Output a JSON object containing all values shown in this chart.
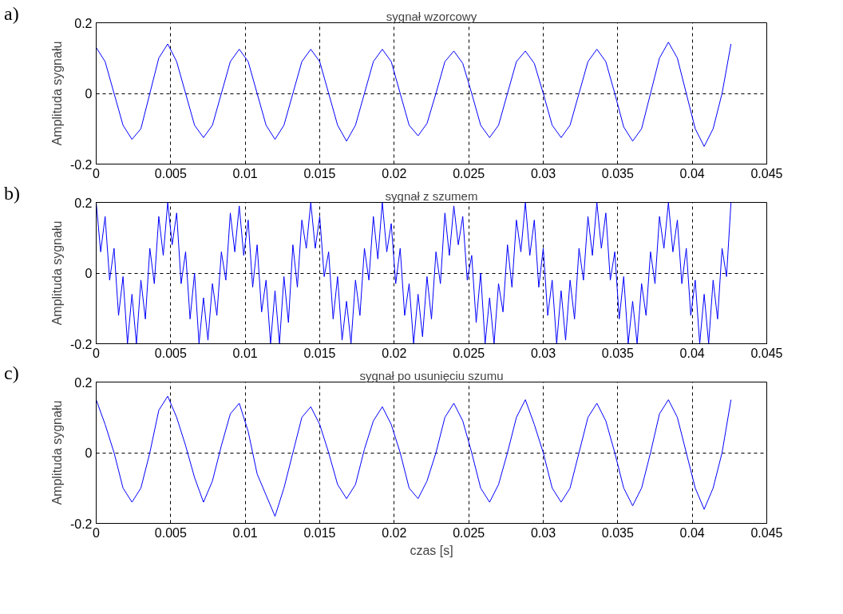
{
  "chart_data": [
    {
      "type": "line",
      "title": "sygnał wzorcowy",
      "ylabel": "Amplituda sygnału",
      "annotations": [
        "a)"
      ],
      "color": "#0000ff",
      "grid": true,
      "xlim": [
        0,
        0.045
      ],
      "ylim": [
        -0.2,
        0.2
      ],
      "xticks": [
        0,
        0.005,
        0.01,
        0.015,
        0.02,
        0.025,
        0.03,
        0.035,
        0.04,
        0.045
      ],
      "yticks": [
        -0.2,
        0,
        0.2
      ],
      "x": [
        0,
        0.0006,
        0.0012,
        0.0018,
        0.0024,
        0.003,
        0.0036,
        0.0042,
        0.0048,
        0.0054,
        0.006,
        0.0066,
        0.0072,
        0.0078,
        0.0084,
        0.009,
        0.0096,
        0.0102,
        0.0108,
        0.0114,
        0.012,
        0.0126,
        0.0132,
        0.0138,
        0.0144,
        0.015,
        0.0156,
        0.0162,
        0.0168,
        0.0174,
        0.018,
        0.0186,
        0.0192,
        0.0198,
        0.0204,
        0.021,
        0.0216,
        0.0222,
        0.0228,
        0.0234,
        0.024,
        0.0246,
        0.0252,
        0.0258,
        0.0264,
        0.027,
        0.0276,
        0.0282,
        0.0288,
        0.0294,
        0.03,
        0.0306,
        0.0312,
        0.0318,
        0.0324,
        0.033,
        0.0336,
        0.0342,
        0.0348,
        0.0354,
        0.036,
        0.0366,
        0.0372,
        0.0378,
        0.0384,
        0.039,
        0.0396,
        0.0402,
        0.0408,
        0.0414,
        0.042,
        0.0426
      ],
      "values": [
        0.13,
        0.09,
        0.0,
        -0.09,
        -0.13,
        -0.1,
        0.0,
        0.1,
        0.14,
        0.09,
        0.0,
        -0.09,
        -0.125,
        -0.09,
        0.0,
        0.09,
        0.125,
        0.09,
        0.0,
        -0.09,
        -0.13,
        -0.09,
        0.0,
        0.09,
        0.125,
        0.09,
        0.0,
        -0.09,
        -0.135,
        -0.09,
        0.0,
        0.09,
        0.125,
        0.09,
        0.0,
        -0.09,
        -0.12,
        -0.085,
        0.0,
        0.09,
        0.12,
        0.085,
        0.0,
        -0.09,
        -0.125,
        -0.09,
        0.0,
        0.09,
        0.12,
        0.085,
        0.0,
        -0.09,
        -0.125,
        -0.09,
        0.0,
        0.09,
        0.125,
        0.09,
        0.0,
        -0.095,
        -0.135,
        -0.1,
        0.0,
        0.1,
        0.145,
        0.1,
        0.0,
        -0.1,
        -0.15,
        -0.1,
        0.0,
        0.14
      ]
    },
    {
      "type": "line",
      "title": "sygnał z szumem",
      "ylabel": "Amplituda sygnału",
      "annotations": [
        "b)"
      ],
      "color": "#0000ff",
      "grid": true,
      "xlim": [
        0,
        0.045
      ],
      "ylim": [
        -0.2,
        0.2
      ],
      "xticks": [
        0,
        0.005,
        0.01,
        0.015,
        0.02,
        0.025,
        0.03,
        0.035,
        0.04,
        0.045
      ],
      "yticks": [
        -0.2,
        0,
        0.2
      ],
      "x": [
        0,
        0.0003,
        0.0006,
        0.0009,
        0.0012,
        0.0015,
        0.0018,
        0.0021,
        0.0024,
        0.0027,
        0.003,
        0.0033,
        0.0036,
        0.0039,
        0.0042,
        0.0045,
        0.0048,
        0.0051,
        0.0054,
        0.0057,
        0.006,
        0.0063,
        0.0066,
        0.0069,
        0.0072,
        0.0075,
        0.0078,
        0.0081,
        0.0084,
        0.0087,
        0.009,
        0.0093,
        0.0096,
        0.0099,
        0.0102,
        0.0105,
        0.0108,
        0.0111,
        0.0114,
        0.0117,
        0.012,
        0.0123,
        0.0126,
        0.0129,
        0.0132,
        0.0135,
        0.0138,
        0.0141,
        0.0144,
        0.0147,
        0.015,
        0.0153,
        0.0156,
        0.0159,
        0.0162,
        0.0165,
        0.0168,
        0.0171,
        0.0174,
        0.0177,
        0.018,
        0.0183,
        0.0186,
        0.0189,
        0.0192,
        0.0195,
        0.0198,
        0.0201,
        0.0204,
        0.0207,
        0.021,
        0.0213,
        0.0216,
        0.0219,
        0.0222,
        0.0225,
        0.0228,
        0.0231,
        0.0234,
        0.0237,
        0.024,
        0.0243,
        0.0246,
        0.0249,
        0.0252,
        0.0255,
        0.0258,
        0.0261,
        0.0264,
        0.0267,
        0.027,
        0.0273,
        0.0276,
        0.0279,
        0.0282,
        0.0285,
        0.0288,
        0.0291,
        0.0294,
        0.0297,
        0.03,
        0.0303,
        0.0306,
        0.0309,
        0.0312,
        0.0315,
        0.0318,
        0.0321,
        0.0324,
        0.0327,
        0.033,
        0.0333,
        0.0336,
        0.0339,
        0.0342,
        0.0345,
        0.0348,
        0.0351,
        0.0354,
        0.0357,
        0.036,
        0.0363,
        0.0366,
        0.0369,
        0.0372,
        0.0375,
        0.0378,
        0.0381,
        0.0384,
        0.0387,
        0.039,
        0.0393,
        0.0396,
        0.0399,
        0.0402,
        0.0405,
        0.0408,
        0.0411,
        0.0414,
        0.0417,
        0.042,
        0.0423,
        0.0426
      ],
      "values": [
        0.2,
        0.06,
        0.16,
        -0.02,
        0.07,
        -0.12,
        -0.01,
        -0.2,
        -0.06,
        -0.2,
        -0.02,
        -0.13,
        0.07,
        -0.03,
        0.16,
        0.05,
        0.2,
        0.08,
        0.17,
        -0.03,
        0.06,
        -0.13,
        0.0,
        -0.2,
        -0.07,
        -0.19,
        -0.03,
        -0.12,
        0.06,
        -0.02,
        0.17,
        0.06,
        0.19,
        0.05,
        0.15,
        -0.04,
        0.08,
        -0.11,
        -0.02,
        -0.2,
        -0.05,
        -0.2,
        -0.01,
        -0.14,
        0.08,
        -0.04,
        0.15,
        0.07,
        0.2,
        0.07,
        0.16,
        -0.01,
        0.06,
        -0.13,
        -0.01,
        -0.19,
        -0.08,
        -0.2,
        -0.02,
        -0.12,
        0.07,
        -0.02,
        0.16,
        0.04,
        0.2,
        0.06,
        0.14,
        -0.03,
        0.07,
        -0.12,
        -0.03,
        -0.2,
        -0.06,
        -0.18,
        -0.01,
        -0.13,
        0.06,
        -0.03,
        0.17,
        0.05,
        0.19,
        0.08,
        0.16,
        -0.02,
        0.05,
        -0.14,
        0.0,
        -0.2,
        -0.07,
        -0.2,
        -0.03,
        -0.11,
        0.08,
        -0.04,
        0.15,
        0.06,
        0.2,
        0.05,
        0.15,
        -0.04,
        0.07,
        -0.12,
        -0.02,
        -0.2,
        -0.05,
        -0.19,
        -0.02,
        -0.13,
        0.07,
        -0.02,
        0.16,
        0.05,
        0.2,
        0.07,
        0.17,
        -0.02,
        0.06,
        -0.13,
        -0.01,
        -0.2,
        -0.08,
        -0.2,
        -0.03,
        -0.12,
        0.06,
        -0.03,
        0.16,
        0.07,
        0.2,
        0.06,
        0.15,
        -0.03,
        0.07,
        -0.12,
        -0.02,
        -0.2,
        -0.06,
        -0.2,
        -0.02,
        -0.13,
        0.07,
        -0.01,
        0.2
      ]
    },
    {
      "type": "line",
      "title": "sygnał po usunięciu szumu",
      "ylabel": "Amplituda sygnału",
      "xlabel": "czas [s]",
      "annotations": [
        "c)"
      ],
      "color": "#0000ff",
      "grid": true,
      "xlim": [
        0,
        0.045
      ],
      "ylim": [
        -0.2,
        0.2
      ],
      "xticks": [
        0,
        0.005,
        0.01,
        0.015,
        0.02,
        0.025,
        0.03,
        0.035,
        0.04,
        0.045
      ],
      "yticks": [
        -0.2,
        0,
        0.2
      ],
      "x": [
        0,
        0.0006,
        0.0012,
        0.0018,
        0.0024,
        0.003,
        0.0036,
        0.0042,
        0.0048,
        0.0054,
        0.006,
        0.0066,
        0.0072,
        0.0078,
        0.0084,
        0.009,
        0.0096,
        0.0102,
        0.0108,
        0.0114,
        0.012,
        0.0126,
        0.0132,
        0.0138,
        0.0144,
        0.015,
        0.0156,
        0.0162,
        0.0168,
        0.0174,
        0.018,
        0.0186,
        0.0192,
        0.0198,
        0.0204,
        0.021,
        0.0216,
        0.0222,
        0.0228,
        0.0234,
        0.024,
        0.0246,
        0.0252,
        0.0258,
        0.0264,
        0.027,
        0.0276,
        0.0282,
        0.0288,
        0.0294,
        0.03,
        0.0306,
        0.0312,
        0.0318,
        0.0324,
        0.033,
        0.0336,
        0.0342,
        0.0348,
        0.0354,
        0.036,
        0.0366,
        0.0372,
        0.0378,
        0.0384,
        0.039,
        0.0396,
        0.0402,
        0.0408,
        0.0414,
        0.042,
        0.0426
      ],
      "values": [
        0.15,
        0.08,
        0.0,
        -0.1,
        -0.14,
        -0.1,
        0.0,
        0.12,
        0.16,
        0.1,
        0.02,
        -0.07,
        -0.14,
        -0.08,
        0.02,
        0.11,
        0.14,
        0.06,
        -0.06,
        -0.12,
        -0.18,
        -0.1,
        0.0,
        0.1,
        0.13,
        0.08,
        0.0,
        -0.09,
        -0.13,
        -0.09,
        0.01,
        0.09,
        0.13,
        0.08,
        0.0,
        -0.1,
        -0.13,
        -0.08,
        0.0,
        0.1,
        0.14,
        0.09,
        0.0,
        -0.1,
        -0.14,
        -0.09,
        0.0,
        0.1,
        0.15,
        0.08,
        0.0,
        -0.1,
        -0.14,
        -0.1,
        0.0,
        0.1,
        0.14,
        0.09,
        0.0,
        -0.1,
        -0.15,
        -0.1,
        0.0,
        0.11,
        0.15,
        0.1,
        0.0,
        -0.1,
        -0.16,
        -0.1,
        0.0,
        0.15
      ]
    }
  ]
}
